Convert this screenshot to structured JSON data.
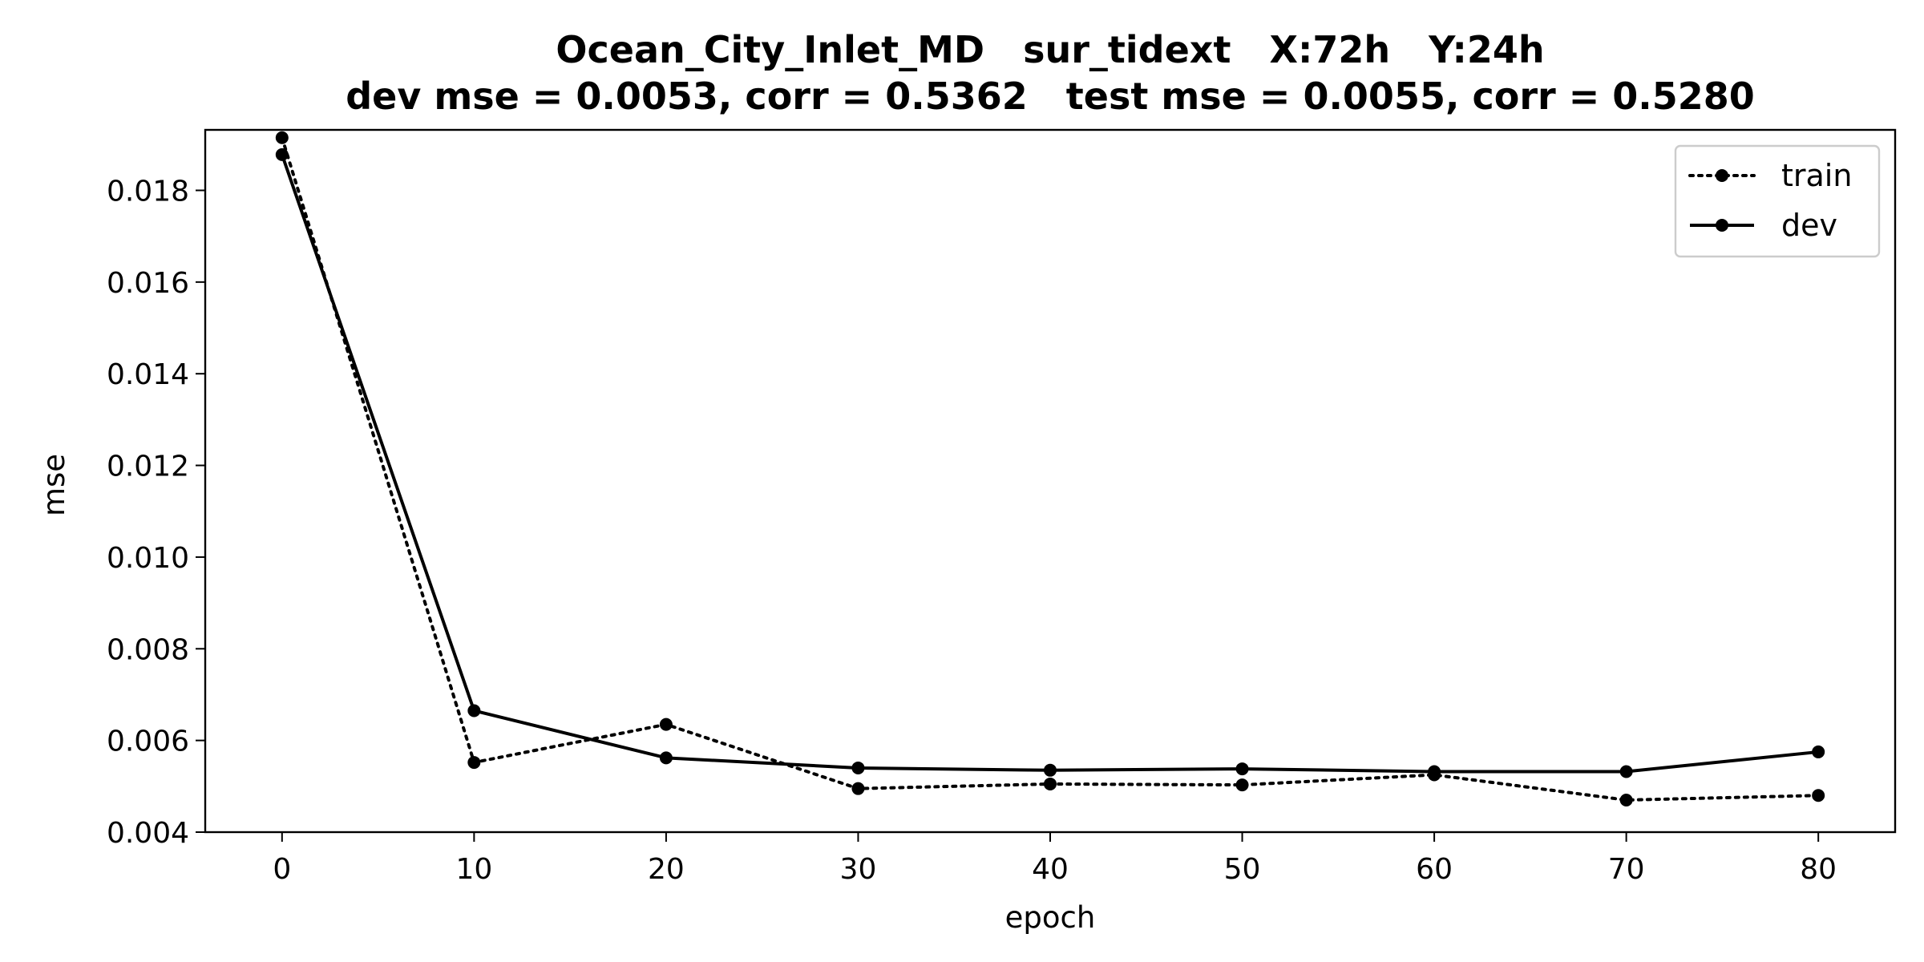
{
  "chart_data": {
    "type": "line",
    "title_line1": "Ocean_City_Inlet_MD   sur_tidext   X:72h   Y:24h",
    "title_line2": "dev mse = 0.0053, corr = 0.5362   test mse = 0.0055, corr = 0.5280",
    "xlabel": "epoch",
    "ylabel": "mse",
    "xlim": [
      -4,
      84
    ],
    "ylim": [
      0.004,
      0.01932
    ],
    "xticks": [
      0,
      10,
      20,
      30,
      40,
      50,
      60,
      70,
      80
    ],
    "xtick_labels": [
      "0",
      "10",
      "20",
      "30",
      "40",
      "50",
      "60",
      "70",
      "80"
    ],
    "yticks": [
      0.004,
      0.006,
      0.008,
      0.01,
      0.012,
      0.014,
      0.016,
      0.018
    ],
    "ytick_labels": [
      "0.004",
      "0.006",
      "0.008",
      "0.010",
      "0.012",
      "0.014",
      "0.016",
      "0.018"
    ],
    "x": [
      0,
      10,
      20,
      30,
      40,
      50,
      60,
      70,
      80
    ],
    "legend_position": "top-right",
    "grid": false,
    "series": [
      {
        "name": "train",
        "line_style": "dotted",
        "marker": "circle",
        "color": "#000000",
        "values": [
          0.01915,
          0.00552,
          0.00635,
          0.00495,
          0.00505,
          0.00503,
          0.00525,
          0.0047,
          0.0048
        ]
      },
      {
        "name": "dev",
        "line_style": "solid",
        "marker": "circle",
        "color": "#000000",
        "values": [
          0.01878,
          0.00665,
          0.00562,
          0.0054,
          0.00535,
          0.00538,
          0.00532,
          0.00532,
          0.00575
        ]
      }
    ]
  }
}
